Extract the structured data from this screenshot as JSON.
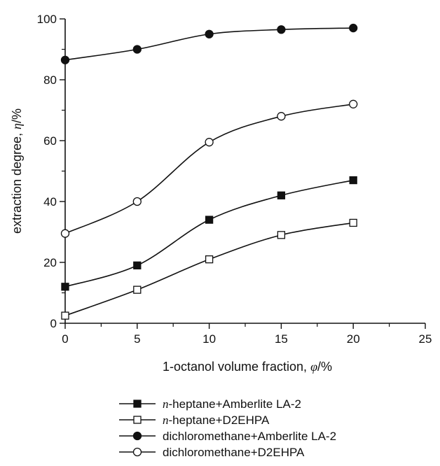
{
  "chart_data": {
    "type": "line",
    "x": [
      0,
      5,
      10,
      15,
      20
    ],
    "xlim": [
      0,
      25
    ],
    "ylim": [
      0,
      100
    ],
    "xticks": [
      0,
      5,
      10,
      15,
      20,
      25
    ],
    "yticks": [
      0,
      20,
      40,
      60,
      80,
      100
    ],
    "xlabel": {
      "prefix": "1-octanol volume fraction, ",
      "symbol": "φ",
      "suffix": "/%"
    },
    "ylabel": {
      "prefix": "extraction degree, ",
      "symbol": "η",
      "suffix": "/%"
    },
    "legend_position": "bottom",
    "series": [
      {
        "id": "s1",
        "name_italic": "n",
        "name_rest": "-heptane+Amberlite LA-2",
        "marker": "square",
        "filled": true,
        "values": [
          12,
          19,
          34,
          42,
          47
        ]
      },
      {
        "id": "s2",
        "name_italic": "n",
        "name_rest": "-heptane+D2EHPA",
        "marker": "square",
        "filled": false,
        "values": [
          2.5,
          11,
          21,
          29,
          33
        ]
      },
      {
        "id": "s3",
        "name_italic": "",
        "name_rest": "dichloromethane+Amberlite LA-2",
        "marker": "circle",
        "filled": true,
        "values": [
          86.5,
          90,
          95,
          96.5,
          97
        ]
      },
      {
        "id": "s4",
        "name_italic": "",
        "name_rest": "dichloromethane+D2EHPA",
        "marker": "circle",
        "filled": false,
        "values": [
          29.5,
          40,
          59.5,
          68,
          72
        ]
      }
    ]
  }
}
